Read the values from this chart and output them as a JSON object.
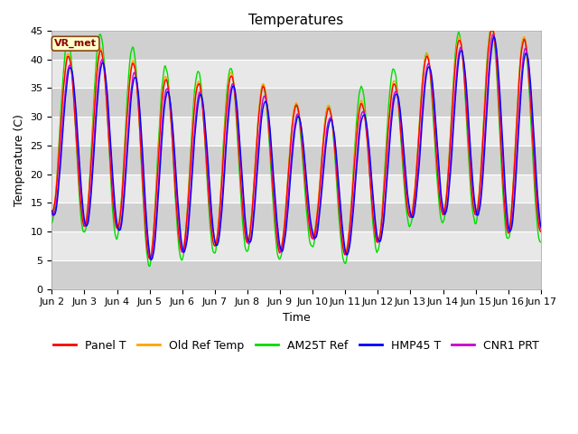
{
  "title": "Temperatures",
  "xlabel": "Time",
  "ylabel": "Temperature (C)",
  "ylim": [
    0,
    45
  ],
  "yticks": [
    0,
    5,
    10,
    15,
    20,
    25,
    30,
    35,
    40,
    45
  ],
  "annotation": "VR_met",
  "background_color": "#ffffff",
  "plot_bg_color": "#d8d8d8",
  "band_color_light": "#e8e8e8",
  "band_color_dark": "#d0d0d0",
  "series": {
    "Panel T": "#ff0000",
    "Old Ref Temp": "#ffa500",
    "AM25T Ref": "#00dd00",
    "HMP45 T": "#0000ff",
    "CNR1 PRT": "#cc00cc"
  },
  "x_tick_labels": [
    "Jun 2",
    "Jun 3",
    "Jun 4",
    "Jun 5",
    "Jun 6",
    "Jun 7",
    "Jun 8",
    "Jun 9",
    "Jun 10",
    "Jun 11",
    "Jun 12",
    "Jun 13",
    "Jun 14",
    "Jun 15",
    "Jun 16",
    "Jun 17"
  ],
  "title_fontsize": 11,
  "axis_fontsize": 9,
  "tick_fontsize": 8,
  "legend_fontsize": 9,
  "linewidth": 1.0,
  "day_peaks": [
    39,
    42,
    41,
    37.5,
    35.5,
    36,
    38.5,
    32,
    32,
    31,
    33.5,
    38,
    43,
    44,
    47,
    40,
    40,
    38
  ],
  "day_mins": [
    13,
    11,
    10.5,
    5,
    6.5,
    7.5,
    8,
    6.5,
    9,
    6,
    8,
    12.5,
    13,
    13,
    10,
    10,
    10,
    10
  ],
  "green_extra": [
    3,
    3,
    3,
    2.5,
    2,
    2.5,
    0,
    0,
    0,
    1,
    5,
    0,
    1,
    1,
    0,
    0,
    0,
    0
  ],
  "blue_lag": 0.06,
  "magenta_lag": 0.04
}
